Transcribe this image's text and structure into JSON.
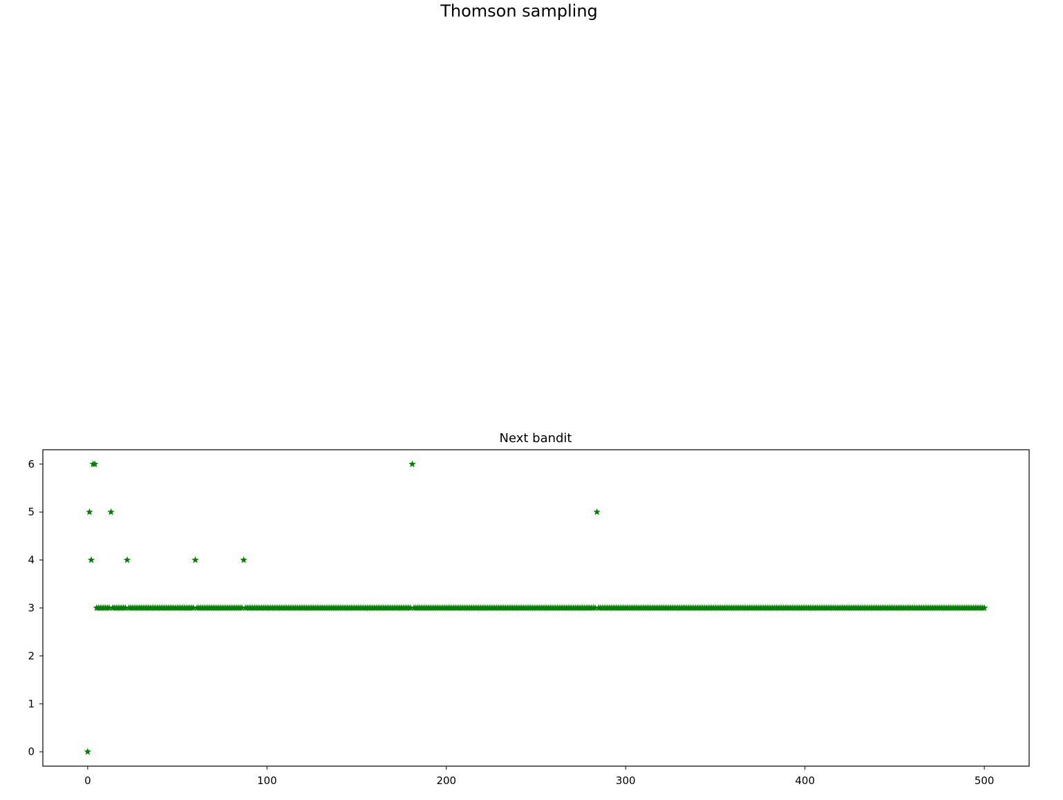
{
  "figure": {
    "suptitle": "Thomson sampling"
  },
  "chart_data": {
    "type": "scatter",
    "title": "Next bandit",
    "xlabel": "",
    "ylabel": "",
    "xlim": [
      -25,
      525
    ],
    "ylim": [
      -0.3,
      6.3
    ],
    "xticks": [
      0,
      100,
      200,
      300,
      400,
      500
    ],
    "yticks": [
      0,
      1,
      2,
      3,
      4,
      5,
      6
    ],
    "marker": "star",
    "color": "#008000",
    "grid": false,
    "legend": "none",
    "series": [
      {
        "default_y": 3,
        "x_range": [
          0,
          500
        ],
        "exceptions": [
          {
            "x": 0,
            "y": 0
          },
          {
            "x": 1,
            "y": 5
          },
          {
            "x": 2,
            "y": 4
          },
          {
            "x": 3,
            "y": 6
          },
          {
            "x": 4,
            "y": 6
          },
          {
            "x": 13,
            "y": 5
          },
          {
            "x": 22,
            "y": 4
          },
          {
            "x": 60,
            "y": 4
          },
          {
            "x": 87,
            "y": 4
          },
          {
            "x": 181,
            "y": 6
          },
          {
            "x": 284,
            "y": 5
          }
        ]
      }
    ]
  }
}
